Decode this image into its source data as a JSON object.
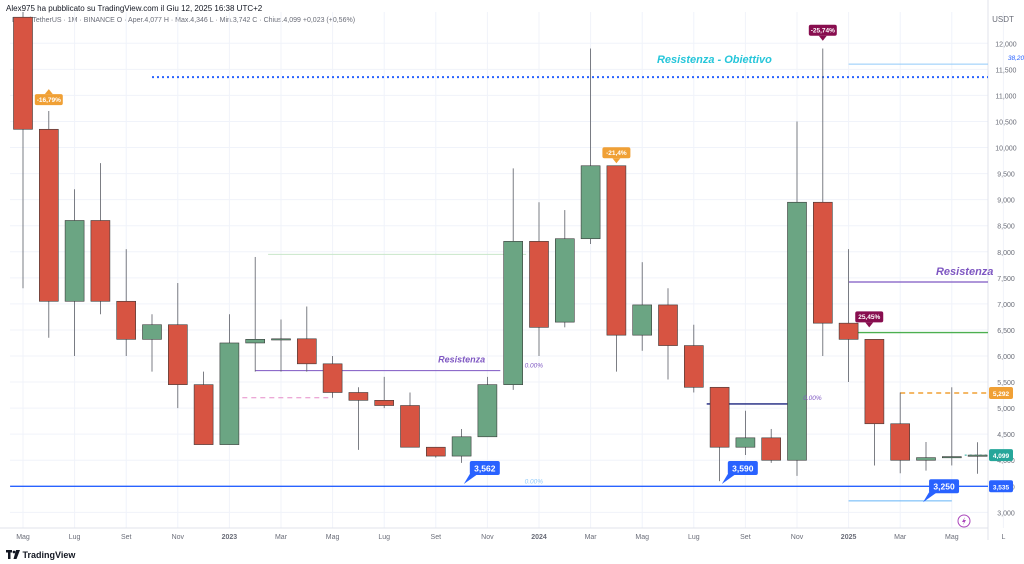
{
  "header": {
    "publish_line": "Alex975 ha pubblicato su TradingView.com il Giu 12, 2025 16:38 UTC+2",
    "symbol_line": "DOT / TetherUS · 1M · BINANCE  O · Aper.4,077  H · Max.4,346  L · Min.3,742  C · Chius.4,099  +0,023 (+0,56%)"
  },
  "footer": {
    "brand": "TradingView",
    "brand_icon": "tv-logo-icon"
  },
  "colors": {
    "up": "#6ba583",
    "down": "#d75442",
    "blue": "#2962ff",
    "orange": "#f0a035",
    "purple": "#7e57c2",
    "green": "#4caf50",
    "maroon": "#880e4f",
    "teal": "#26a69a",
    "grid": "#f0f3fa",
    "axis_text": "#6a6d78"
  },
  "chart_data": {
    "type": "candlestick",
    "y_axis": {
      "currency": "USDT",
      "ylim": [
        2.7,
        12.6
      ],
      "tick_labels": [
        "3,000",
        "3,500",
        "4,000",
        "4,500",
        "5,000",
        "5,500",
        "6,000",
        "6,500",
        "7,000",
        "7,500",
        "8,000",
        "8,500",
        "9,000",
        "9,500",
        "10,000",
        "10,500",
        "11,000",
        "11,500",
        "12,000"
      ],
      "grid": true
    },
    "x_axis": {
      "tick_labels": [
        "Mag",
        "Lug",
        "Set",
        "Nov",
        "2023",
        "Mar",
        "Mag",
        "Lug",
        "Set",
        "Nov",
        "2024",
        "Mar",
        "Mag",
        "Lug",
        "Set",
        "Nov",
        "2025",
        "Mar",
        "Mag",
        "L"
      ]
    },
    "candles": [
      {
        "o": 12.5,
        "h": 12.6,
        "l": 7.3,
        "c": 10.35
      },
      {
        "o": 10.35,
        "h": 10.7,
        "l": 6.35,
        "c": 7.05
      },
      {
        "o": 7.05,
        "h": 9.2,
        "l": 6.0,
        "c": 8.6
      },
      {
        "o": 8.6,
        "h": 9.7,
        "l": 6.8,
        "c": 7.05
      },
      {
        "o": 7.05,
        "h": 8.05,
        "l": 6.0,
        "c": 6.32
      },
      {
        "o": 6.32,
        "h": 6.8,
        "l": 5.7,
        "c": 6.6
      },
      {
        "o": 6.6,
        "h": 7.4,
        "l": 5.0,
        "c": 5.45
      },
      {
        "o": 5.45,
        "h": 5.7,
        "l": 4.3,
        "c": 4.3
      },
      {
        "o": 4.3,
        "h": 6.8,
        "l": 4.3,
        "c": 6.25
      },
      {
        "o": 6.25,
        "h": 7.9,
        "l": 5.7,
        "c": 6.32
      },
      {
        "o": 6.32,
        "h": 6.7,
        "l": 5.7,
        "c": 6.33
      },
      {
        "o": 6.33,
        "h": 6.95,
        "l": 5.7,
        "c": 5.85
      },
      {
        "o": 5.85,
        "h": 6.0,
        "l": 5.2,
        "c": 5.3
      },
      {
        "o": 5.3,
        "h": 5.4,
        "l": 4.2,
        "c": 5.15
      },
      {
        "o": 5.15,
        "h": 5.6,
        "l": 5.0,
        "c": 5.05
      },
      {
        "o": 5.05,
        "h": 5.3,
        "l": 4.25,
        "c": 4.25
      },
      {
        "o": 4.25,
        "h": 4.25,
        "l": 4.05,
        "c": 4.08
      },
      {
        "o": 4.08,
        "h": 4.6,
        "l": 3.95,
        "c": 4.45
      },
      {
        "o": 4.45,
        "h": 5.6,
        "l": 4.45,
        "c": 5.45
      },
      {
        "o": 5.45,
        "h": 9.6,
        "l": 5.35,
        "c": 8.2
      },
      {
        "o": 8.2,
        "h": 8.95,
        "l": 6.0,
        "c": 6.55
      },
      {
        "o": 6.65,
        "h": 8.8,
        "l": 6.55,
        "c": 8.25
      },
      {
        "o": 8.25,
        "h": 11.9,
        "l": 8.15,
        "c": 9.65
      },
      {
        "o": 9.65,
        "h": 9.65,
        "l": 5.7,
        "c": 6.4
      },
      {
        "o": 6.4,
        "h": 7.8,
        "l": 6.1,
        "c": 6.98
      },
      {
        "o": 6.98,
        "h": 7.3,
        "l": 5.55,
        "c": 6.2
      },
      {
        "o": 6.2,
        "h": 6.6,
        "l": 5.3,
        "c": 5.4
      },
      {
        "o": 5.4,
        "h": 5.4,
        "l": 3.6,
        "c": 4.25
      },
      {
        "o": 4.25,
        "h": 4.95,
        "l": 4.1,
        "c": 4.43
      },
      {
        "o": 4.43,
        "h": 4.6,
        "l": 3.95,
        "c": 4.0
      },
      {
        "o": 4.0,
        "h": 10.5,
        "l": 3.7,
        "c": 8.95
      },
      {
        "o": 8.95,
        "h": 11.9,
        "l": 6.0,
        "c": 6.63
      },
      {
        "o": 6.63,
        "h": 8.05,
        "l": 5.5,
        "c": 6.32
      },
      {
        "o": 6.32,
        "h": 6.32,
        "l": 3.9,
        "c": 4.7
      },
      {
        "o": 4.7,
        "h": 5.3,
        "l": 3.75,
        "c": 4.0
      },
      {
        "o": 4.0,
        "h": 4.35,
        "l": 3.8,
        "c": 4.05
      },
      {
        "o": 4.05,
        "h": 5.4,
        "l": 3.9,
        "c": 4.07
      },
      {
        "o": 4.077,
        "h": 4.346,
        "l": 3.742,
        "c": 4.099
      }
    ],
    "levels": [
      {
        "name": "resistenza-obiettivo-line",
        "from": 5,
        "to": 39,
        "y": 11.35,
        "color": "#2962ff",
        "style": "dotted",
        "width": 2
      },
      {
        "name": "fib-38-line",
        "from": 32.0,
        "to": 39,
        "y": 11.6,
        "color": "#90caf9",
        "style": "solid",
        "width": 1
      },
      {
        "name": "resistenza-1-line",
        "from": 9.0,
        "to": 18.5,
        "y": 5.72,
        "color": "#7e57c2",
        "style": "solid",
        "width": 1
      },
      {
        "name": "fib-9-line",
        "from": 9.5,
        "to": 19.5,
        "y": 7.95,
        "color": "#c8e6c9",
        "style": "solid",
        "width": 1
      },
      {
        "name": "dash-pink-line",
        "from": 8.5,
        "to": 12.0,
        "y": 5.2,
        "color": "#e58bc8",
        "style": "dashed",
        "width": 1
      },
      {
        "name": "resistenza-2-line",
        "from": 32.0,
        "to": 39,
        "y": 7.42,
        "color": "#7e57c2",
        "style": "solid",
        "width": 1.3
      },
      {
        "name": "green-line",
        "from": 32.0,
        "to": 39,
        "y": 6.45,
        "color": "#4caf50",
        "style": "solid",
        "width": 1.3
      },
      {
        "name": "orange-dash-line",
        "from": 34.0,
        "to": 39,
        "y": 5.29,
        "color": "#f0a035",
        "style": "dashed",
        "width": 1.5
      },
      {
        "name": "dark-blue-line",
        "from": 26.5,
        "to": 30.0,
        "y": 5.08,
        "color": "#1a237e",
        "style": "solid",
        "width": 1.3
      },
      {
        "name": "support-line",
        "from": -0.5,
        "to": 39,
        "y": 3.5,
        "color": "#2962ff",
        "style": "solid",
        "width": 1.3
      },
      {
        "name": "bottom-blue-line",
        "from": 32.0,
        "to": 36.0,
        "y": 3.22,
        "color": "#64b5f6",
        "style": "solid",
        "width": 1
      },
      {
        "name": "last-price-line",
        "from": 36.5,
        "to": 39,
        "y": 4.099,
        "color": "#26a69a",
        "style": "dotted",
        "width": 1
      }
    ],
    "annotations": [
      {
        "text": "Resistenza - Obiettivo",
        "x": 26.8,
        "y": 11.62,
        "color": "#26c6da",
        "size": 11
      },
      {
        "text": "Resistenza",
        "x": 36.5,
        "y": 7.55,
        "color": "#7e57c2",
        "size": 11
      },
      {
        "text": "Resistenza",
        "x": 17.0,
        "y": 5.88,
        "color": "#7e57c2",
        "size": 9
      },
      {
        "text": "38,20%",
        "x": 38.6,
        "y": 11.68,
        "color": "#2962ff",
        "size": 6.5
      },
      {
        "text": "0.00%",
        "x": 19.8,
        "y": 5.78,
        "color": "#7e57c2",
        "size": 6.5
      },
      {
        "text": "0.00%",
        "x": 30.6,
        "y": 5.16,
        "color": "#7e57c2",
        "size": 6.5
      },
      {
        "text": "0.00%",
        "x": 19.8,
        "y": 3.55,
        "color": "#90caf9",
        "size": 6.5
      }
    ],
    "badges": [
      {
        "text": "-16,79%",
        "x": 1.0,
        "y": 10.92,
        "color": "#f0a035",
        "pointer": "up"
      },
      {
        "text": "-21,4%",
        "x": 23.0,
        "y": 9.9,
        "color": "#f0a035",
        "pointer": "down"
      },
      {
        "text": "-25,74%",
        "x": 31.0,
        "y": 12.25,
        "color": "#880e4f",
        "pointer": "down"
      },
      {
        "text": "25,45%",
        "x": 32.8,
        "y": 6.75,
        "color": "#880e4f",
        "pointer": "down"
      },
      {
        "text": "3,562",
        "x": 17.9,
        "y": 3.85,
        "color": "#2962ff",
        "pointer": "left",
        "big": true
      },
      {
        "text": "3,590",
        "x": 27.9,
        "y": 3.85,
        "color": "#2962ff",
        "pointer": "left",
        "big": true
      },
      {
        "text": "3,250",
        "x": 35.7,
        "y": 3.5,
        "color": "#2962ff",
        "pointer": "left",
        "big": true
      }
    ],
    "price_tags": [
      {
        "text": "5,292",
        "y": 5.29,
        "color": "#f0a035"
      },
      {
        "text": "4,099",
        "y": 4.099,
        "color": "#26a69a"
      },
      {
        "text": "3,535",
        "y": 3.5,
        "color": "#2962ff"
      }
    ]
  }
}
